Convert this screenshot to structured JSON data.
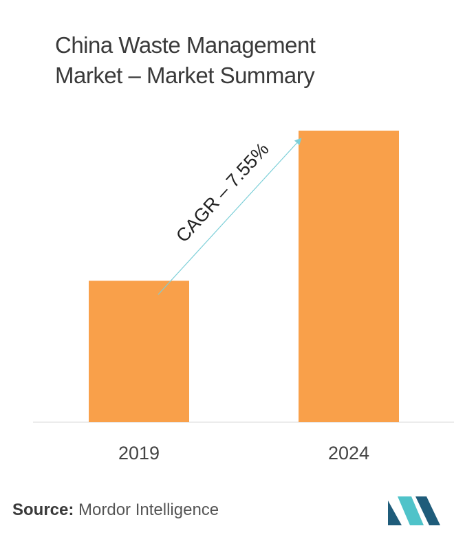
{
  "title_line1": "China Waste Management",
  "title_line2": "Market – Market Summary",
  "chart_data": {
    "type": "bar",
    "categories": [
      "2019",
      "2024"
    ],
    "values": [
      48.5,
      100
    ],
    "ylim": [
      0,
      100
    ],
    "grid": false,
    "annotation": "CAGR – 7.55%"
  },
  "source": {
    "label": "Source:",
    "text": "Mordor Intelligence"
  },
  "colors": {
    "bar": "#F9A04A",
    "arrow": "#7CCFD8",
    "logo_dark": "#1F5C7A",
    "logo_light": "#4FC3C9"
  }
}
